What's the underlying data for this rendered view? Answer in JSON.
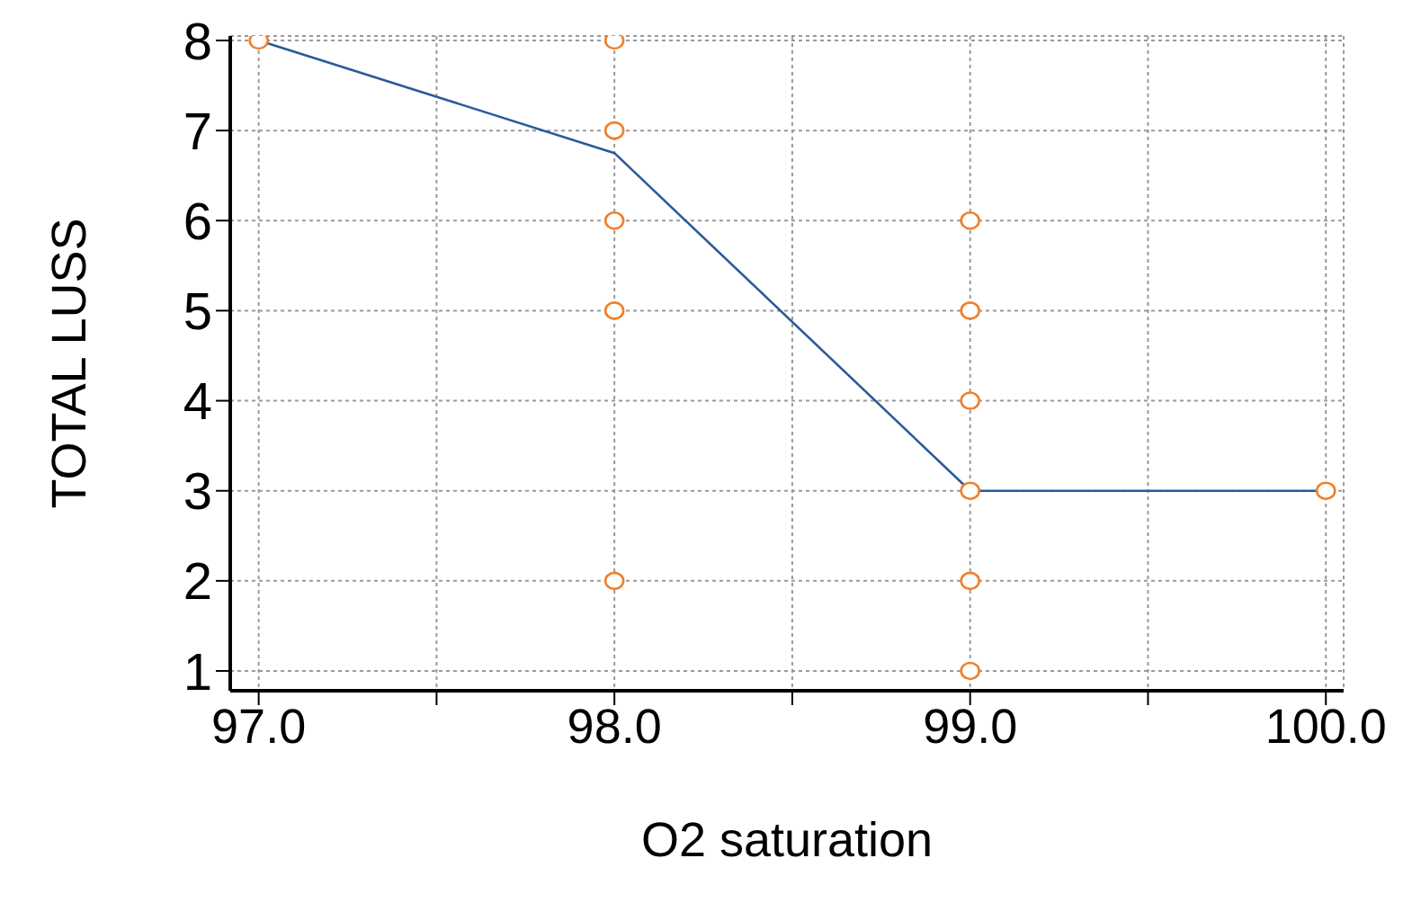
{
  "chart_data": {
    "type": "scatter",
    "xlabel": "O2 saturation",
    "ylabel": "TOTAL LUSS",
    "xlim": [
      96.92,
      100.05
    ],
    "ylim": [
      0.78,
      8.05
    ],
    "xticks": [
      {
        "value": 97,
        "label": "97.0"
      },
      {
        "value": 97.5,
        "label": null
      },
      {
        "value": 98,
        "label": "98.0"
      },
      {
        "value": 98.5,
        "label": null
      },
      {
        "value": 99,
        "label": "99.0"
      },
      {
        "value": 99.5,
        "label": null
      },
      {
        "value": 100,
        "label": "100.0"
      }
    ],
    "yticks": [
      1,
      2,
      3,
      4,
      5,
      6,
      7,
      8
    ],
    "grid": true,
    "marker": "circle",
    "series": [
      {
        "color": "#f07f2a",
        "x": [
          97,
          98,
          98,
          98,
          98,
          98,
          99,
          99,
          99,
          99,
          99,
          99,
          100
        ],
        "values": [
          8,
          8,
          7,
          6,
          5,
          2,
          6,
          5,
          4,
          3,
          2,
          1,
          3
        ]
      },
      {
        "type": "line",
        "color": "#2a5a9a",
        "marker": "none",
        "x": [
          97,
          98,
          99,
          100
        ],
        "values": [
          8,
          6.75,
          3,
          3
        ]
      }
    ]
  }
}
